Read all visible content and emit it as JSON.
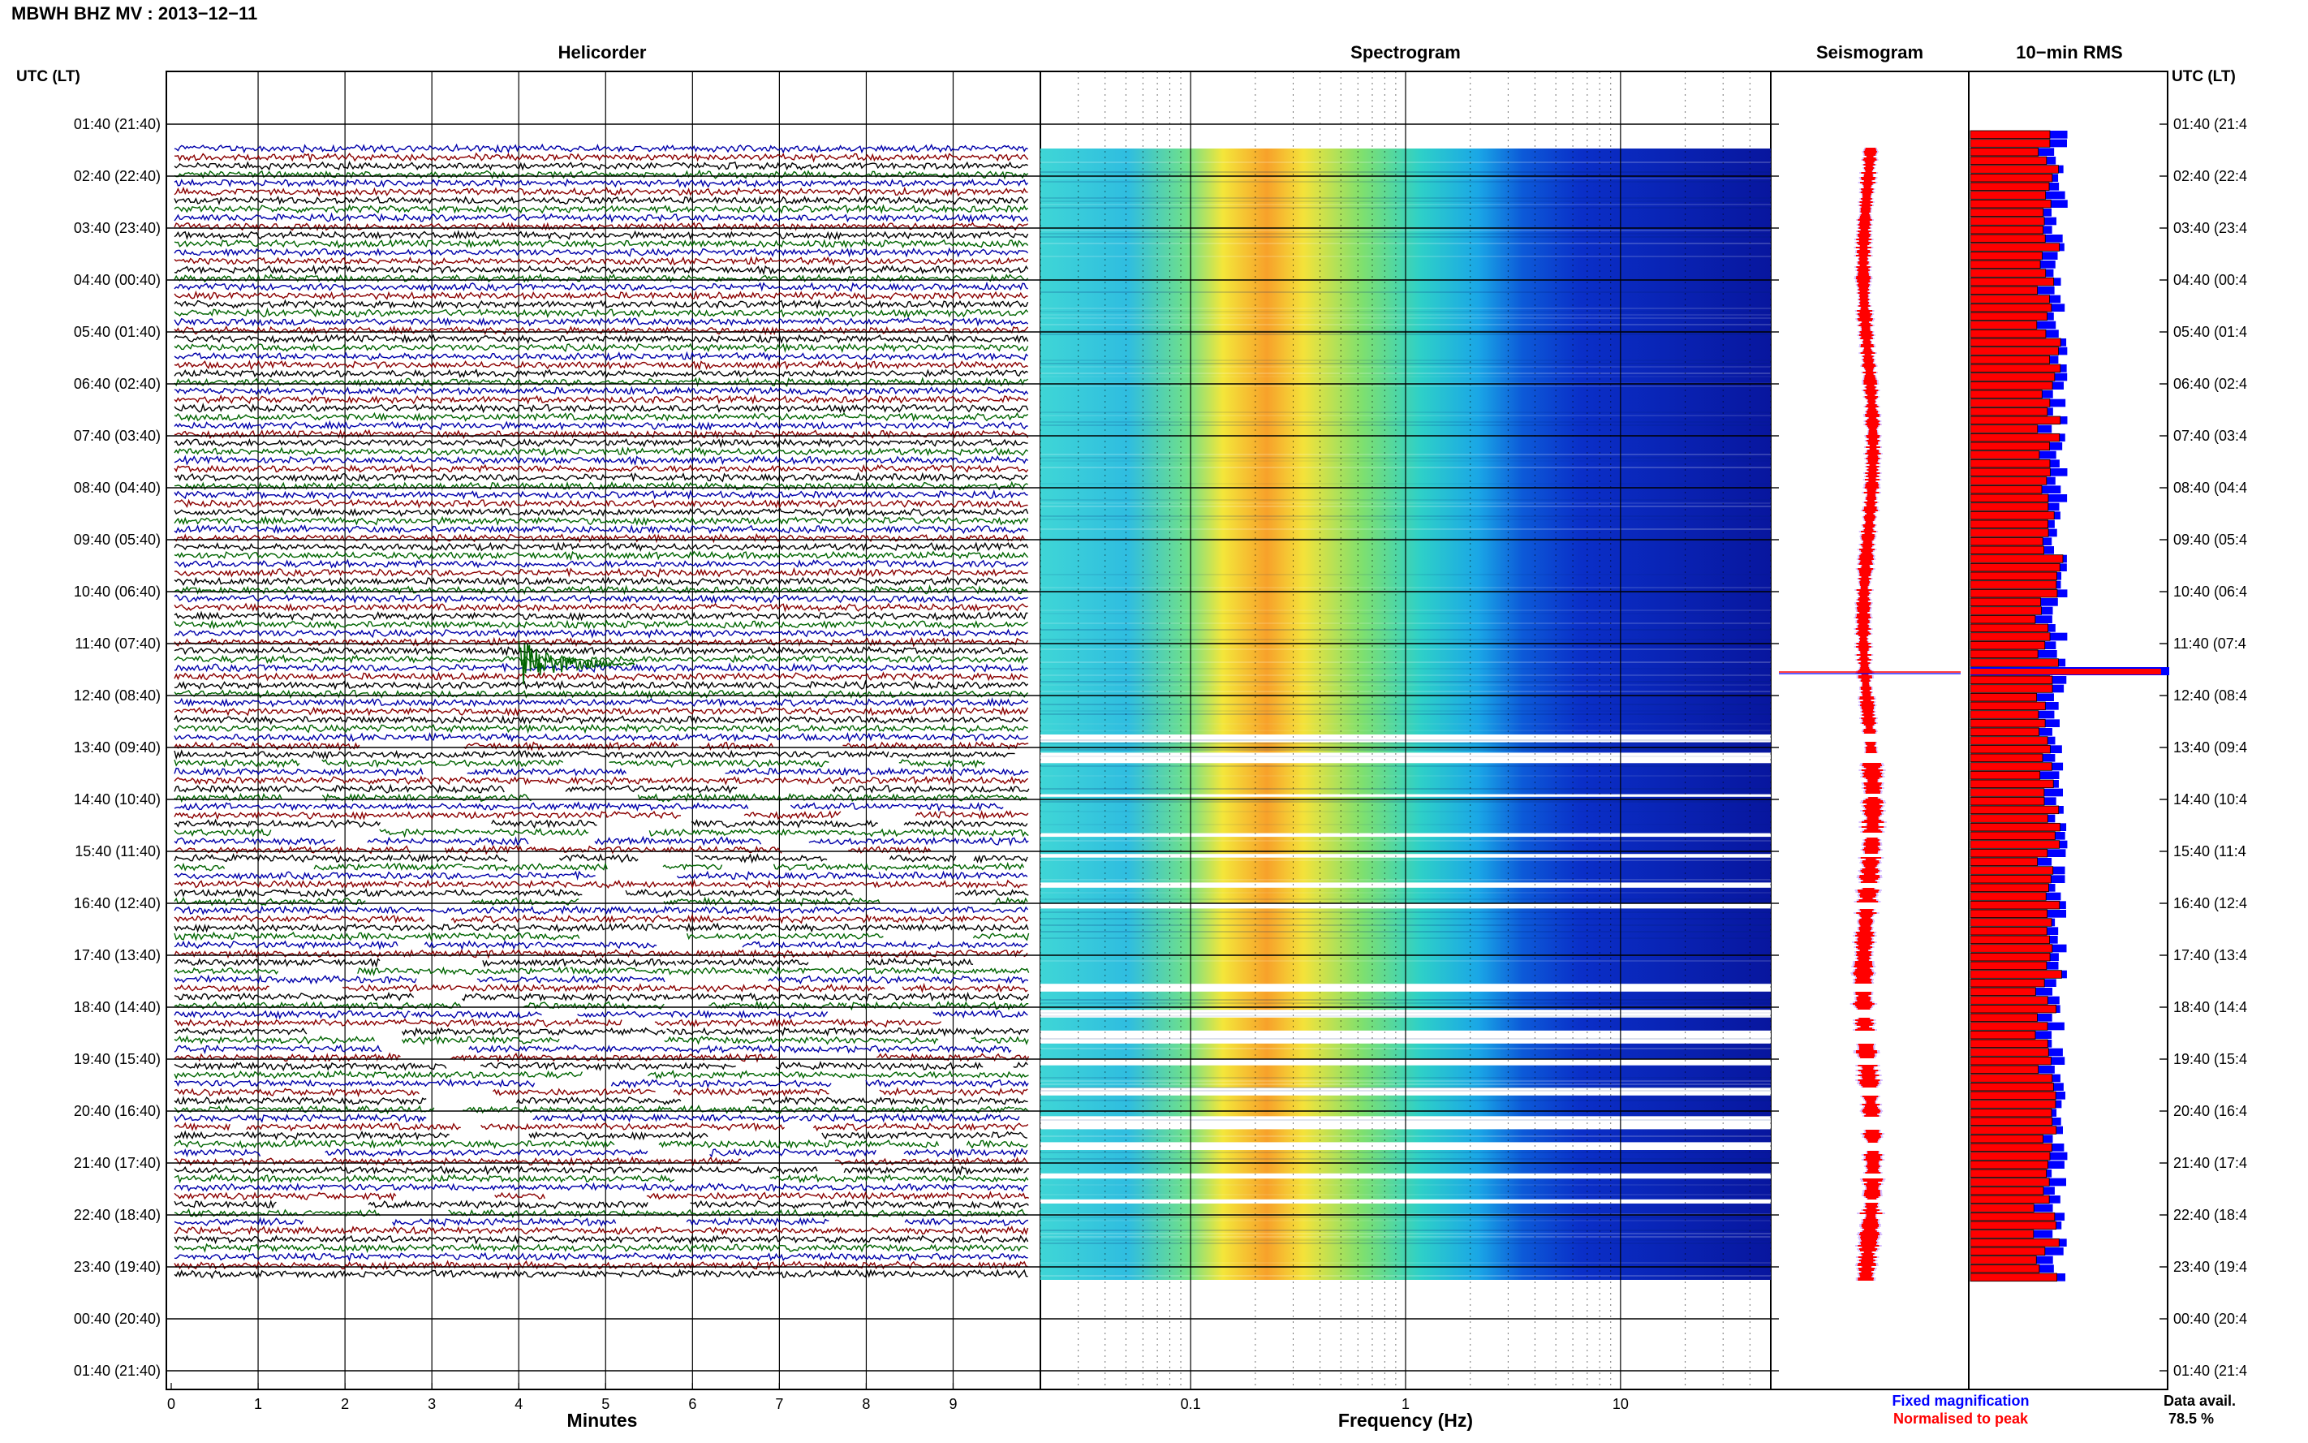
{
  "header": {
    "title": "MBWH BHZ MV : 2013−12−11",
    "utc_label_left": "UTC (LT)",
    "utc_label_right": "UTC (LT)"
  },
  "panels": {
    "helicorder_title": "Helicorder",
    "spectrogram_title": "Spectrogram",
    "seismogram_title": "Seismogram",
    "rms_title": "10−min RMS"
  },
  "time_labels_left": [
    "01:40 (21:40)",
    "02:40 (22:40)",
    "03:40 (23:40)",
    "04:40 (00:40)",
    "05:40 (01:40)",
    "06:40 (02:40)",
    "07:40 (03:40)",
    "08:40 (04:40)",
    "09:40 (05:40)",
    "10:40 (06:40)",
    "11:40 (07:40)",
    "12:40 (08:40)",
    "13:40 (09:40)",
    "14:40 (10:40)",
    "15:40 (11:40)",
    "16:40 (12:40)",
    "17:40 (13:40)",
    "18:40 (14:40)",
    "19:40 (15:40)",
    "20:40 (16:40)",
    "21:40 (17:40)",
    "22:40 (18:40)",
    "23:40 (19:40)",
    "00:40 (20:40)",
    "01:40 (21:40)"
  ],
  "time_labels_right": [
    "01:40 (21:4",
    "02:40 (22:4",
    "03:40 (23:4",
    "04:40 (00:4",
    "05:40 (01:4",
    "06:40 (02:4",
    "07:40 (03:4",
    "08:40 (04:4",
    "09:40 (05:4",
    "10:40 (06:4",
    "11:40 (07:4",
    "12:40 (08:4",
    "13:40 (09:4",
    "14:40 (10:4",
    "15:40 (11:4",
    "16:40 (12:4",
    "17:40 (13:4",
    "18:40 (14:4",
    "19:40 (15:4",
    "20:40 (16:4",
    "21:40 (17:4",
    "22:40 (18:4",
    "23:40 (19:4",
    "00:40 (20:4",
    "01:40 (21:4"
  ],
  "footer": {
    "minutes_label": "Minutes",
    "frequency_label": "Frequency (Hz)",
    "fixed_magnification": "Fixed magnification",
    "normalised_to_peak": "Normalised to peak",
    "data_avail_label": "Data avail.",
    "data_avail_value": "78.5 %"
  },
  "colors": {
    "trace_colors": [
      "#0000aa",
      "#8b0000",
      "#000000",
      "#006400"
    ],
    "fixed_magnification": "#0000ff",
    "normalised_to_peak": "#ff0000"
  },
  "chart_data": [
    {
      "type": "line",
      "panel": "Helicorder",
      "title": "Helicorder",
      "xlabel": "Minutes",
      "x_ticks": [
        "0",
        "1",
        "2",
        "3",
        "4",
        "5",
        "6",
        "7",
        "8",
        "9"
      ],
      "xlim": [
        0,
        10
      ],
      "rows_per_hour": 6,
      "data_span_utc": [
        "02:10",
        "00:10"
      ],
      "event": {
        "time_utc": "12:10",
        "minute": 4.0
      }
    },
    {
      "type": "heatmap",
      "panel": "Spectrogram",
      "title": "Spectrogram",
      "xlabel": "Frequency (Hz)",
      "x_ticks": [
        "0.1",
        "1",
        "10"
      ],
      "x_scale": "log",
      "xlim": [
        0.02,
        50
      ],
      "dominant_band_hz": [
        0.15,
        0.4
      ]
    },
    {
      "type": "line",
      "panel": "Seismogram",
      "title": "Seismogram"
    },
    {
      "type": "bar",
      "panel": "10-min RMS",
      "title": "10−min RMS",
      "series": [
        {
          "name": "Fixed magnification",
          "color": "#0000ff"
        },
        {
          "name": "Normalised to peak",
          "color": "#ff0000"
        }
      ],
      "peak_time_utc": "12:10"
    }
  ]
}
